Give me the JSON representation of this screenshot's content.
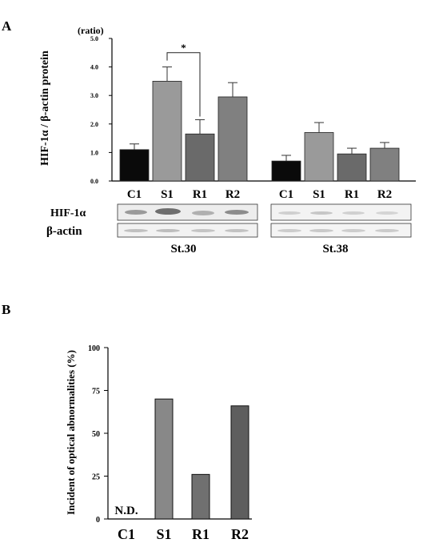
{
  "panel_labels": {
    "a": "A",
    "b": "B"
  },
  "chart_data": [
    {
      "type": "bar",
      "panel": "A",
      "unit_label": "(ratio)",
      "ylabel": "HIF-1α / β-actin protein",
      "ylim": [
        0,
        5
      ],
      "yticks": [
        "0.0",
        "1.0",
        "2.0",
        "3.0",
        "4.0",
        "5.0"
      ],
      "groups": [
        {
          "name": "St.30",
          "categories": [
            "C1",
            "S1",
            "R1",
            "R2"
          ],
          "values": [
            1.1,
            3.5,
            1.65,
            2.95
          ],
          "errors": [
            0.2,
            0.5,
            0.5,
            0.5
          ]
        },
        {
          "name": "St.38",
          "categories": [
            "C1",
            "S1",
            "R1",
            "R2"
          ],
          "values": [
            0.7,
            1.7,
            0.95,
            1.15
          ],
          "errors": [
            0.2,
            0.35,
            0.2,
            0.2
          ]
        }
      ],
      "colors": [
        "#0a0a0a",
        "#9a9a9a",
        "#6a6a6a",
        "#808080"
      ],
      "significance": {
        "label": "*",
        "between": [
          "S1",
          "R1"
        ],
        "group": "St.30"
      },
      "blot_labels": [
        "HIF-1α",
        "β-actin"
      ],
      "grid": false
    },
    {
      "type": "bar",
      "panel": "B",
      "ylabel": "Incident of optical abnormalities (%)",
      "ylim": [
        0,
        100
      ],
      "yticks": [
        "0",
        "25",
        "50",
        "75",
        "100"
      ],
      "categories": [
        "C1",
        "S1",
        "R1",
        "R2"
      ],
      "values": [
        0,
        70,
        26,
        66
      ],
      "colors": [
        "#888888",
        "#888888",
        "#707070",
        "#5e5e5e"
      ],
      "annotation": "N.D.",
      "grid": false
    }
  ]
}
